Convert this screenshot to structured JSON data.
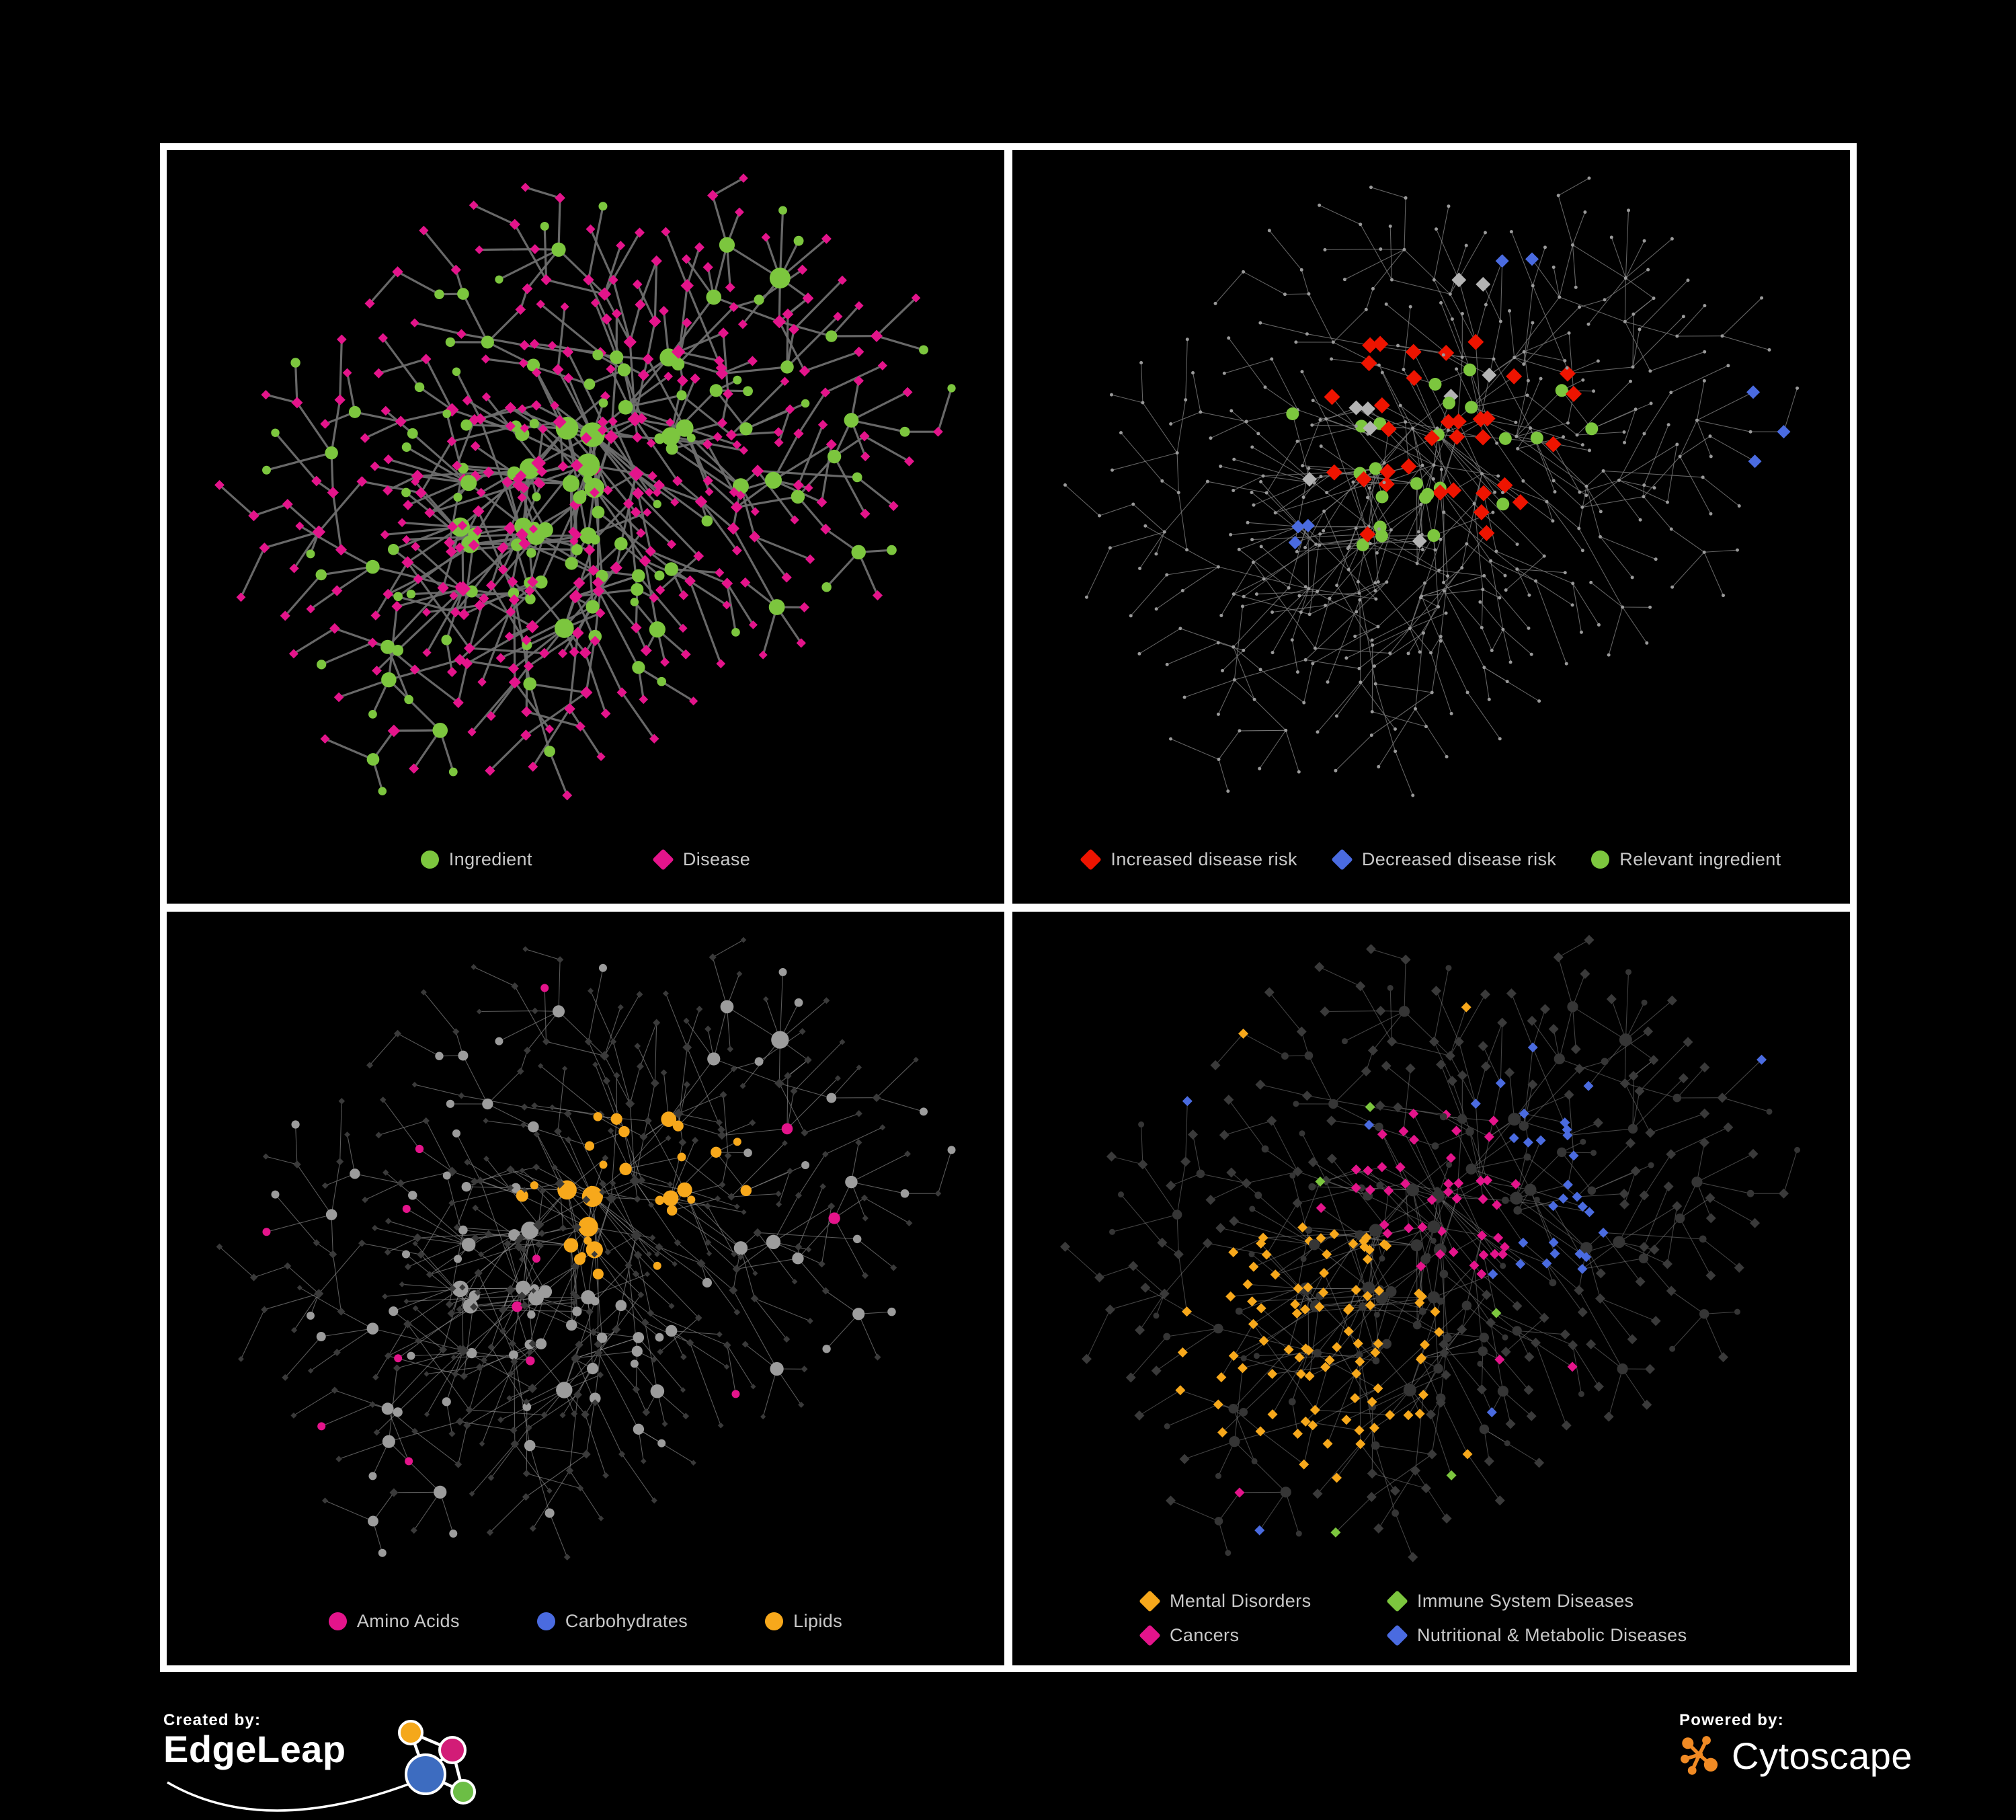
{
  "style": {
    "background": "#000000",
    "frame": "#FFFFFF",
    "legend_text": "#C9C9C9",
    "edge_gray": "#6E6E6E",
    "thin_edge_gray": "#8A8A8A",
    "faint_node_gray": "#9C9C9C",
    "dim_node_dark": "#3A3A3A",
    "neutral_highlight_gray": "#B3B3B3"
  },
  "panels": [
    {
      "name": "ingredient-disease-network",
      "position": "top-left",
      "legend": [
        {
          "label": "Ingredient",
          "shape": "circle",
          "color": "#7CC63E"
        },
        {
          "label": "Disease",
          "shape": "diamond",
          "color": "#E4148B"
        }
      ]
    },
    {
      "name": "disease-risk-network",
      "position": "top-right",
      "legend": [
        {
          "label": "Increased disease risk",
          "shape": "diamond",
          "color": "#EE1400"
        },
        {
          "label": "Decreased disease risk",
          "shape": "diamond",
          "color": "#4A6BE0"
        },
        {
          "label": "Relevant ingredient",
          "shape": "circle",
          "color": "#7CC63E"
        }
      ]
    },
    {
      "name": "nutrient-class-network",
      "position": "bottom-left",
      "legend": [
        {
          "label": "Amino Acids",
          "shape": "circle",
          "color": "#E4148B"
        },
        {
          "label": "Carbohydrates",
          "shape": "circle",
          "color": "#4A6BE0"
        },
        {
          "label": "Lipids",
          "shape": "circle",
          "color": "#F7A81B"
        }
      ]
    },
    {
      "name": "disease-category-network",
      "position": "bottom-right",
      "legend": [
        {
          "label": "Mental Disorders",
          "shape": "diamond",
          "color": "#F7A81B"
        },
        {
          "label": "Immune System Diseases",
          "shape": "diamond",
          "color": "#7CC63E"
        },
        {
          "label": "Cancers",
          "shape": "diamond",
          "color": "#E4148B"
        },
        {
          "label": "Nutritional & Metabolic Diseases",
          "shape": "diamond",
          "color": "#4A6BE0"
        }
      ]
    }
  ],
  "footer": {
    "created_by": {
      "label": "Created by:",
      "brand": "EdgeLeap"
    },
    "powered_by": {
      "label": "Powered by:",
      "brand": "Cytoscape"
    },
    "edgeleap_logo_colors": {
      "orange": "#F5A81B",
      "magenta": "#D21C77",
      "blue": "#3D6CC0",
      "green": "#6CBE45"
    },
    "cytoscape_orange": "#F08A24"
  }
}
